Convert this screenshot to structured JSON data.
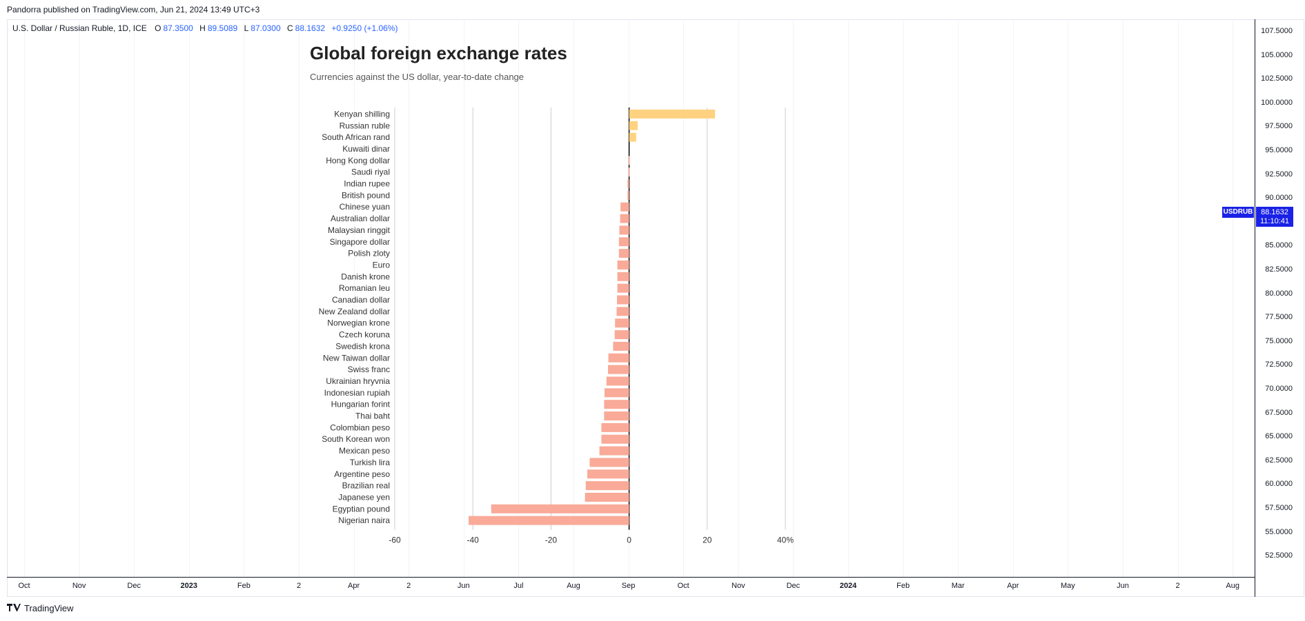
{
  "header": {
    "published": "Pandorra published on TradingView.com, Jun 21, 2024 13:49 UTC+3"
  },
  "symbol": {
    "name": "U.S. Dollar / Russian Ruble, 1D, ICE",
    "open_k": "O",
    "open": "87.3500",
    "high_k": "H",
    "high": "89.5089",
    "low_k": "L",
    "low": "87.0300",
    "close_k": "C",
    "close": "88.1632",
    "change": "+0.9250 (+1.06%)"
  },
  "price_axis": [
    "107.5000",
    "105.0000",
    "102.5000",
    "100.0000",
    "97.5000",
    "95.0000",
    "92.5000",
    "90.0000",
    "85.0000",
    "82.5000",
    "80.0000",
    "77.5000",
    "75.0000",
    "72.5000",
    "70.0000",
    "67.5000",
    "65.0000",
    "62.5000",
    "60.0000",
    "57.5000",
    "55.0000",
    "52.5000"
  ],
  "price_badge": {
    "symbol": "USDRUB",
    "price": "88.1632",
    "countdown": "11:10:41"
  },
  "time_axis": [
    {
      "label": "Oct",
      "bold": false
    },
    {
      "label": "Nov",
      "bold": false
    },
    {
      "label": "Dec",
      "bold": false
    },
    {
      "label": "2023",
      "bold": true
    },
    {
      "label": "Feb",
      "bold": false
    },
    {
      "label": "2",
      "bold": false
    },
    {
      "label": "Apr",
      "bold": false
    },
    {
      "label": "2",
      "bold": false
    },
    {
      "label": "Jun",
      "bold": false
    },
    {
      "label": "Jul",
      "bold": false
    },
    {
      "label": "Aug",
      "bold": false
    },
    {
      "label": "Sep",
      "bold": false
    },
    {
      "label": "Oct",
      "bold": false
    },
    {
      "label": "Nov",
      "bold": false
    },
    {
      "label": "Dec",
      "bold": false
    },
    {
      "label": "2024",
      "bold": true
    },
    {
      "label": "Feb",
      "bold": false
    },
    {
      "label": "Mar",
      "bold": false
    },
    {
      "label": "Apr",
      "bold": false
    },
    {
      "label": "May",
      "bold": false
    },
    {
      "label": "Jun",
      "bold": false
    },
    {
      "label": "2",
      "bold": false
    },
    {
      "label": "Aug",
      "bold": false
    }
  ],
  "footer": {
    "brand": "TradingView"
  },
  "colors": {
    "positive": "#fed281",
    "negative": "#f9aa98",
    "accent": "#2962ff",
    "badge": "#1a22e6"
  },
  "chart_data": {
    "type": "bar",
    "title": "Global foreign exchange rates",
    "subtitle": "Currencies against the US dollar, year-to-date change",
    "xlim": [
      -60,
      40
    ],
    "xticks": [
      "-60",
      "-40",
      "-20",
      "0",
      "20",
      "40%"
    ],
    "xtick_values": [
      -60,
      -40,
      -20,
      0,
      20,
      40
    ],
    "categories": [
      "Kenyan shilling",
      "Russian ruble",
      "South African rand",
      "Kuwaiti dinar",
      "Hong Kong dollar",
      "Saudi riyal",
      "Indian rupee",
      "British pound",
      "Chinese yuan",
      "Australian dollar",
      "Malaysian ringgit",
      "Singapore dollar",
      "Polish zloty",
      "Euro",
      "Danish krone",
      "Romanian leu",
      "Canadian dollar",
      "New Zealand dollar",
      "Norwegian krone",
      "Czech koruna",
      "Swedish krona",
      "New Taiwan dollar",
      "Swiss franc",
      "Ukrainian hryvnia",
      "Indonesian rupiah",
      "Hungarian forint",
      "Thai baht",
      "Colombian peso",
      "South Korean won",
      "Mexican peso",
      "Turkish lira",
      "Argentine peso",
      "Brazilian real",
      "Japanese yen",
      "Egyptian pound",
      "Nigerian naira"
    ],
    "values": [
      22,
      2.2,
      1.8,
      0,
      -0.1,
      -0.1,
      -0.4,
      -0.4,
      -2.2,
      -2.3,
      -2.5,
      -2.6,
      -2.6,
      -3.0,
      -3.0,
      -3.0,
      -3.1,
      -3.2,
      -3.6,
      -3.7,
      -4.1,
      -5.3,
      -5.4,
      -5.8,
      -6.3,
      -6.4,
      -6.4,
      -7.1,
      -7.1,
      -7.6,
      -10.1,
      -10.7,
      -11.1,
      -11.3,
      -35.3,
      -41.1
    ]
  }
}
